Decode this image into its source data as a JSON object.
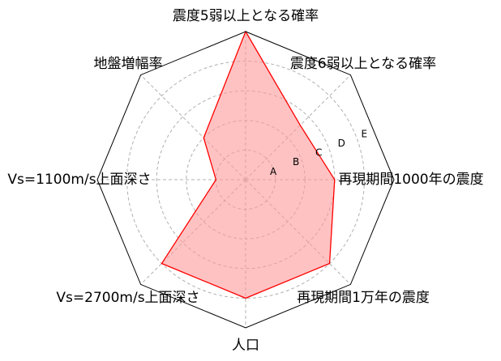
{
  "chart_data": {
    "type": "radar",
    "title": "",
    "axes": [
      "震度5弱以上となる確率",
      "震度6弱以上となる確率",
      "再現期間1000年の震度",
      "再現期間1万年の震度",
      "人口",
      "Vs=2700m/s上面深さ",
      "Vs=1100m/s上面深さ",
      "地盤増幅率"
    ],
    "ring_labels": [
      "A",
      "B",
      "C",
      "D",
      "E"
    ],
    "rlim": [
      0,
      5
    ],
    "grid": true,
    "grid_style": "dashed",
    "series": [
      {
        "values": [
          5.0,
          2.6,
          3.0,
          4.0,
          4.0,
          4.0,
          1.0,
          2.0
        ],
        "line_color": "#ff0000",
        "fill_color": "#ff9999"
      }
    ],
    "frame_color": "#000000",
    "grid_color": "#b0b0b0"
  }
}
